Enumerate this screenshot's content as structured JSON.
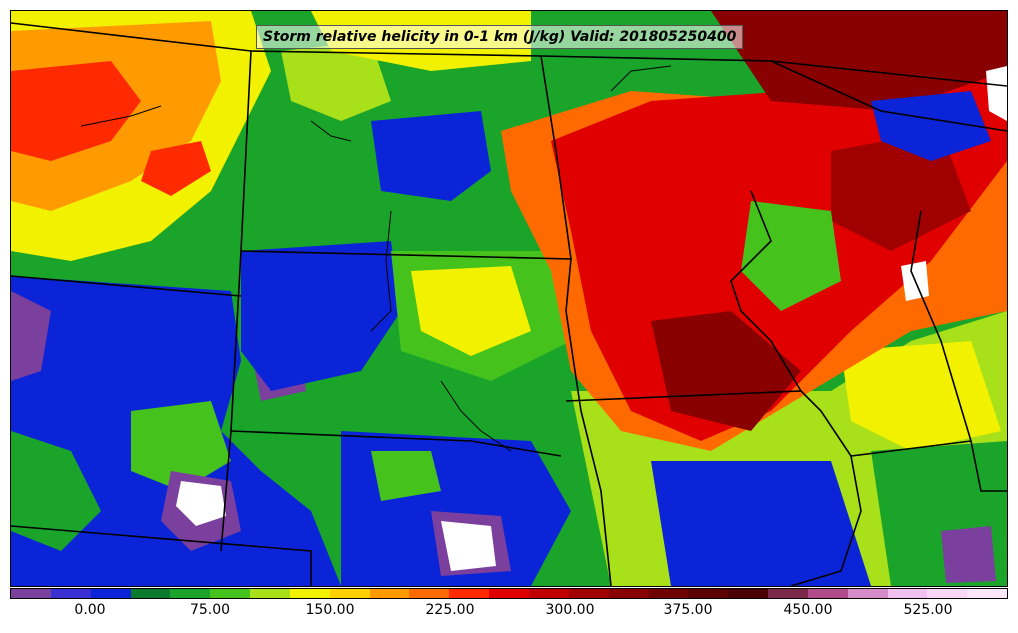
{
  "title": "Storm relative helicity in 0-1 km (J/kg) Valid: 201805250400",
  "colorbar": {
    "colors": [
      "#7b3f9e",
      "#3a2fd0",
      "#0b24d8",
      "#0b7a2e",
      "#1aa52a",
      "#45c21c",
      "#a8e01a",
      "#f2f200",
      "#ffd000",
      "#ff9a00",
      "#ff6a00",
      "#ff2a00",
      "#e00000",
      "#c00000",
      "#a00000",
      "#880000",
      "#700000",
      "#5a0000",
      "#4a0000",
      "#7a2a48",
      "#b04c8a",
      "#d58cc8",
      "#f0c0ee",
      "#f8d8f6",
      "#fbe6fa"
    ],
    "ticks": [
      "0.00",
      "75.00",
      "150.00",
      "225.00",
      "300.00",
      "375.00",
      "450.00",
      "525.00"
    ]
  },
  "map": {
    "palette": {
      "negative": "#7b3f9e",
      "low": "#0b24d8",
      "mid_low": "#1aa52a",
      "mid": "#a8e01a",
      "mid_high": "#f2f200",
      "high": "#ff6a00",
      "very_high": "#e00000",
      "extreme": "#880000",
      "max": "#ffffff"
    }
  }
}
